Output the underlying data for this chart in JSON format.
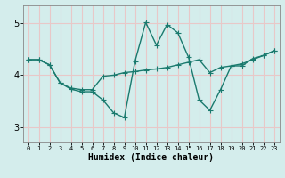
{
  "xlabel": "Humidex (Indice chaleur)",
  "bg_color": "#d4edec",
  "grid_color": "#e8c8c8",
  "line_color": "#1a7a6e",
  "xlim": [
    -0.5,
    23.5
  ],
  "ylim": [
    2.7,
    5.35
  ],
  "yticks": [
    3,
    4,
    5
  ],
  "xticks": [
    0,
    1,
    2,
    3,
    4,
    5,
    6,
    7,
    8,
    9,
    10,
    11,
    12,
    13,
    14,
    15,
    16,
    17,
    18,
    19,
    20,
    21,
    22,
    23
  ],
  "line1_x": [
    0,
    1,
    2,
    3,
    4,
    5,
    6,
    7,
    8,
    9,
    10,
    11,
    12,
    13,
    14,
    15,
    16,
    17,
    18,
    19,
    20,
    21,
    22,
    23
  ],
  "line1_y": [
    4.3,
    4.3,
    4.2,
    3.85,
    3.75,
    3.72,
    3.72,
    3.98,
    4.0,
    4.05,
    4.07,
    4.1,
    4.12,
    4.15,
    4.2,
    4.25,
    4.3,
    4.05,
    4.15,
    4.18,
    4.22,
    4.3,
    4.38,
    4.47
  ],
  "line2_x": [
    0,
    1,
    2,
    3,
    4,
    5,
    6,
    7,
    8,
    9,
    10,
    11,
    12,
    13,
    14,
    15,
    16,
    17,
    18,
    19,
    20,
    21,
    22,
    23
  ],
  "line2_y": [
    4.3,
    4.3,
    4.2,
    3.85,
    3.73,
    3.68,
    3.68,
    3.52,
    3.27,
    3.18,
    4.27,
    5.02,
    4.58,
    4.98,
    4.82,
    4.35,
    3.52,
    3.32,
    3.72,
    4.18,
    4.18,
    4.32,
    4.38,
    4.47
  ],
  "markersize": 2.5,
  "linewidth": 1.0
}
